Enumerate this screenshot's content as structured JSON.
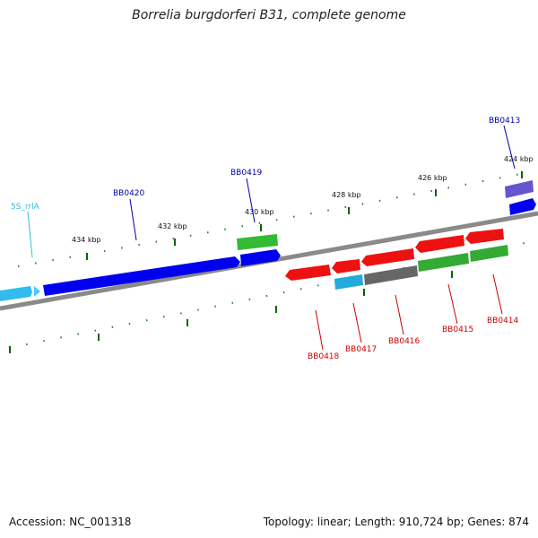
{
  "title": "Borrelia burgdorferi B31, complete genome",
  "footer": {
    "accession": "Accession: NC_001318",
    "summary": "Topology: linear; Length: 910,724 bp; Genes: 874"
  },
  "colors": {
    "forward_gene": "#0000ee",
    "reverse_gene": "#ee0000",
    "rna": "#33bbee",
    "green": "#33aa33",
    "gray": "#666666",
    "purple": "#6655cc",
    "label_forward": "#0000aa",
    "label_reverse": "#cc0000",
    "label_rna": "#33bbdd",
    "tick": "#006600"
  },
  "scale": {
    "tick_labels": [
      "434 kbp",
      "432 kbp",
      "430 kbp",
      "428 kbp",
      "426 kbp",
      "424 kbp"
    ]
  },
  "labels": {
    "rna": [
      "5S_rrlA"
    ],
    "forward": [
      "BB0420",
      "BB0419",
      "BB0413"
    ],
    "reverse": [
      "BB0418",
      "BB0417",
      "BB0416",
      "BB0415",
      "BB0414"
    ]
  }
}
